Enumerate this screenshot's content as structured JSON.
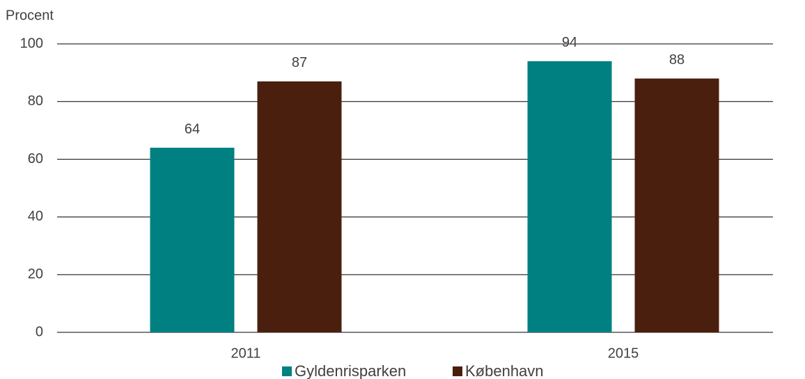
{
  "chart_data": {
    "type": "bar",
    "y_axis_label": "Procent",
    "categories": [
      "2011",
      "2015"
    ],
    "series": [
      {
        "name": "Gyldenrisparken",
        "color": "#008080",
        "values": [
          64,
          94
        ]
      },
      {
        "name": "København",
        "color": "#4a1f0e",
        "values": [
          87,
          88
        ]
      }
    ],
    "ylim": [
      0,
      100
    ],
    "yticks": [
      0,
      20,
      40,
      60,
      80,
      100
    ],
    "grid": true,
    "legend": "bottom"
  }
}
